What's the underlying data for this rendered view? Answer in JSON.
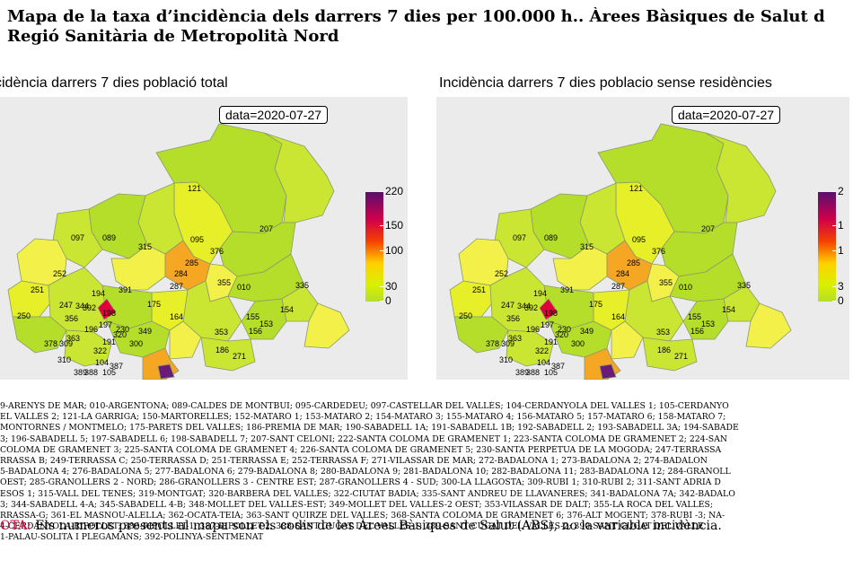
{
  "title": {
    "line1": "Mapa de la taxa d’incidència dels darrers 7 dies per 100.000 h.. Àrees Bàsiques de Salut d",
    "line2": "Regió Sanitària de Metropolità Nord"
  },
  "panels": [
    {
      "title": "cidència darrers 7 dies població total",
      "date": "data=2020-07-27",
      "legend": [
        "220",
        "150",
        "100",
        "30",
        "0"
      ]
    },
    {
      "title": "Incidència darrers 7 dies poblacio sense residències",
      "date": "data=2020-07-27",
      "legend": [
        "2",
        "1",
        "1",
        "3",
        "0"
      ]
    }
  ],
  "map_labels": [
    "121",
    "207",
    "097",
    "089",
    "315",
    "376",
    "095",
    "285",
    "252",
    "251",
    "355",
    "010",
    "335",
    "391",
    "284",
    "287",
    "247",
    "194",
    "392",
    "250",
    "356",
    "344",
    "198",
    "175",
    "349",
    "164",
    "363",
    "196",
    "191",
    "230",
    "155",
    "154",
    "153",
    "156",
    "197",
    "300",
    "320",
    "353",
    "378",
    "309",
    "322",
    "186",
    "271",
    "104",
    "387",
    "310",
    "388",
    "105",
    "389"
  ],
  "colors": {
    "low": "#b5de2b",
    "low2": "#cbe632",
    "mid": "#e6ef27",
    "yellow": "#f3f04a",
    "orange": "#f5a623",
    "red": "#e0003c",
    "purple": "#6a1b7a",
    "panel_bg": "#ebebeb"
  },
  "abs_list": [
    "9-ARENYS DE MAR; 010-ARGENTONA; 089-CALDES DE MONTBUI; 095-CARDEDEU; 097-CASTELLAR DEL VALLÈS; 104-CERDANYOLA DEL VALLÈS 1; 105-CERDANYO",
    "EL VALLÈS 2; 121-LA GARRIGA; 150-MARTORELLES; 152-MATARÓ 1; 153-MATARÓ 2; 154-MATARÓ 3; 155-MATARÓ 4; 156-MATARÓ 5; 157-MATARÓ 6; 158-MATARÓ 7;",
    "MONTORNÈS / MONTMELÓ; 175-PARETS DEL VALLÈS; 186-PREMIÀ DE MAR; 190-SABADELL 1A; 191-SABADELL 1B; 192-SABADELL 2; 193-SABADELL 3A; 194-SABADE",
    "3; 196-SABADELL 5; 197-SABADELL 6; 198-SABADELL 7; 207-SANT CELONI; 222-SANTA COLOMA DE GRAMENET 1; 223-SANTA COLOMA DE GRAMENET 2; 224-SAN",
    "COLOMA DE GRAMENET 3; 225-SANTA COLOMA DE GRAMENET 4; 226-SANTA COLOMA DE GRAMENET 5; 230-SANTA PERPÈTUA DE LA MOGODA; 247-TERRASSA",
    "RRASSA B; 249-TERRASSA C; 250-TERRASSA D; 251-TERRASSA E; 252-TERRASSA F; 271-VILASSAR DE MAR; 272-BADALONA 1; 273-BADALONA 2; 274-BADALON",
    "5-BADALONA 4; 276-BADALONA 5; 277-BADALONA 6; 279-BADALONA 8; 280-BADALONA 9; 281-BADALONA 10; 282-BADALONA 11; 283-BADALONA 12; 284-GRANOLL",
    "OEST; 285-GRANOLLERS 2 - NORD; 286-GRANOLLERS 3 - CENTRE EST; 287-GRANOLLERS 4 - SUD; 300-LA LLAGOSTA; 309-RUBÍ 1; 310-RUBÍ 2; 311-SANT ADRIÀ D",
    "ESÒS 1; 315-VALL DEL TENES; 319-MONTGAT; 320-BARBERÀ DEL VALLÈS; 322-CIUTAT BADIA; 335-SANT ANDREU DE LLAVANERES; 341-BADALONA 7A; 342-BADALO",
    "3; 344-SABADELL 4-A; 345-SABADELL 4-B; 348-MOLLET DEL VALLÈS-EST; 349-MOLLET DEL VALLÈS-2 OEST; 353-VILASSAR DE DALT; 355-LA ROCA DEL VALLÈS;",
    "RRASSA-G; 361-EL MASNOU-ALELLA; 362-OCATA-TEIÀ; 363-SANT QUIRZE DEL VALLÈS; 368-SANTA COLOMA DE GRAMENET 6; 376-ALT MOGENT; 378-RUBÍ -3; NA-",
    "4-CERDANYOLA-RIPOLLET; 386-RIPOLLET-1; 387-RIPOLLET-2; 388-SANT CUGAT DEL VALLÈS-1; 389-SANT CUGAT DEL VALLÈS-2; 390-SANT CUGAT DEL VALLÈ",
    "1-PALAU-SOLITÀ I PLEGAMANS; 392-POLINYÀ-SENTMENAT"
  ],
  "note": {
    "label": "OTA:",
    "text": " Els numeros presents al mapa son els codis de les Àrees Bàsiques de Salut (ABS), no la variable incidència."
  }
}
